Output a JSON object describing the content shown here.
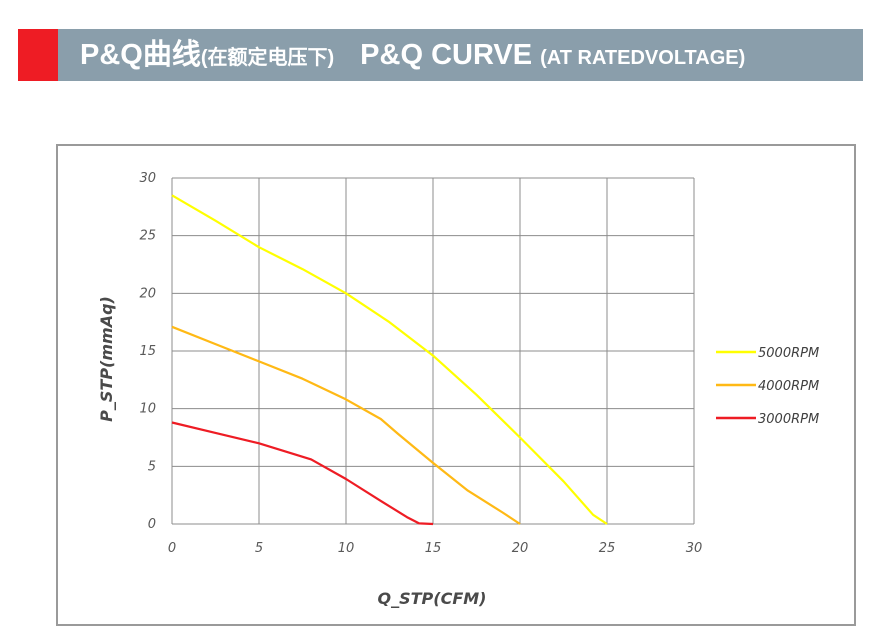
{
  "header": {
    "title_main": "P&Q曲线",
    "title_main_sub": "(在额定电压下)",
    "title_en_main": "P&Q CURVE",
    "title_en_sub": "(AT RATEDVOLTAGE)",
    "accent_color": "#ee1c24",
    "bar_color": "#8a9eab"
  },
  "chart_data": {
    "type": "line",
    "xlabel": "Q_STP(CFM)",
    "ylabel": "P_STP(mmAq)",
    "xlim": [
      0,
      30
    ],
    "ylim": [
      0,
      30
    ],
    "xticks": [
      0,
      5,
      10,
      15,
      20,
      25,
      30
    ],
    "yticks": [
      0,
      5,
      10,
      15,
      20,
      25,
      30
    ],
    "grid": true,
    "legend_position": "right",
    "series": [
      {
        "name": "5000RPM",
        "color": "#ffff00",
        "points": [
          [
            0,
            28.5
          ],
          [
            2.5,
            26.3
          ],
          [
            5,
            24.0
          ],
          [
            7.5,
            22.1
          ],
          [
            10,
            20.0
          ],
          [
            12.5,
            17.5
          ],
          [
            15,
            14.6
          ],
          [
            17.5,
            11.2
          ],
          [
            20,
            7.5
          ],
          [
            22.5,
            3.7
          ],
          [
            24.2,
            0.8
          ],
          [
            25,
            0
          ]
        ]
      },
      {
        "name": "4000RPM",
        "color": "#ffb915",
        "points": [
          [
            0,
            17.1
          ],
          [
            2.5,
            15.6
          ],
          [
            5,
            14.1
          ],
          [
            7.5,
            12.6
          ],
          [
            10,
            10.8
          ],
          [
            12,
            9.1
          ],
          [
            13,
            7.8
          ],
          [
            15,
            5.3
          ],
          [
            17,
            2.9
          ],
          [
            19,
            1.0
          ],
          [
            20,
            0
          ]
        ]
      },
      {
        "name": "3000RPM",
        "color": "#ee1c24",
        "points": [
          [
            0,
            8.8
          ],
          [
            2.5,
            7.9
          ],
          [
            5,
            7.0
          ],
          [
            8,
            5.6
          ],
          [
            10,
            3.9
          ],
          [
            12,
            2.0
          ],
          [
            13.5,
            0.6
          ],
          [
            14.2,
            0.05
          ],
          [
            15,
            0
          ]
        ]
      }
    ]
  }
}
